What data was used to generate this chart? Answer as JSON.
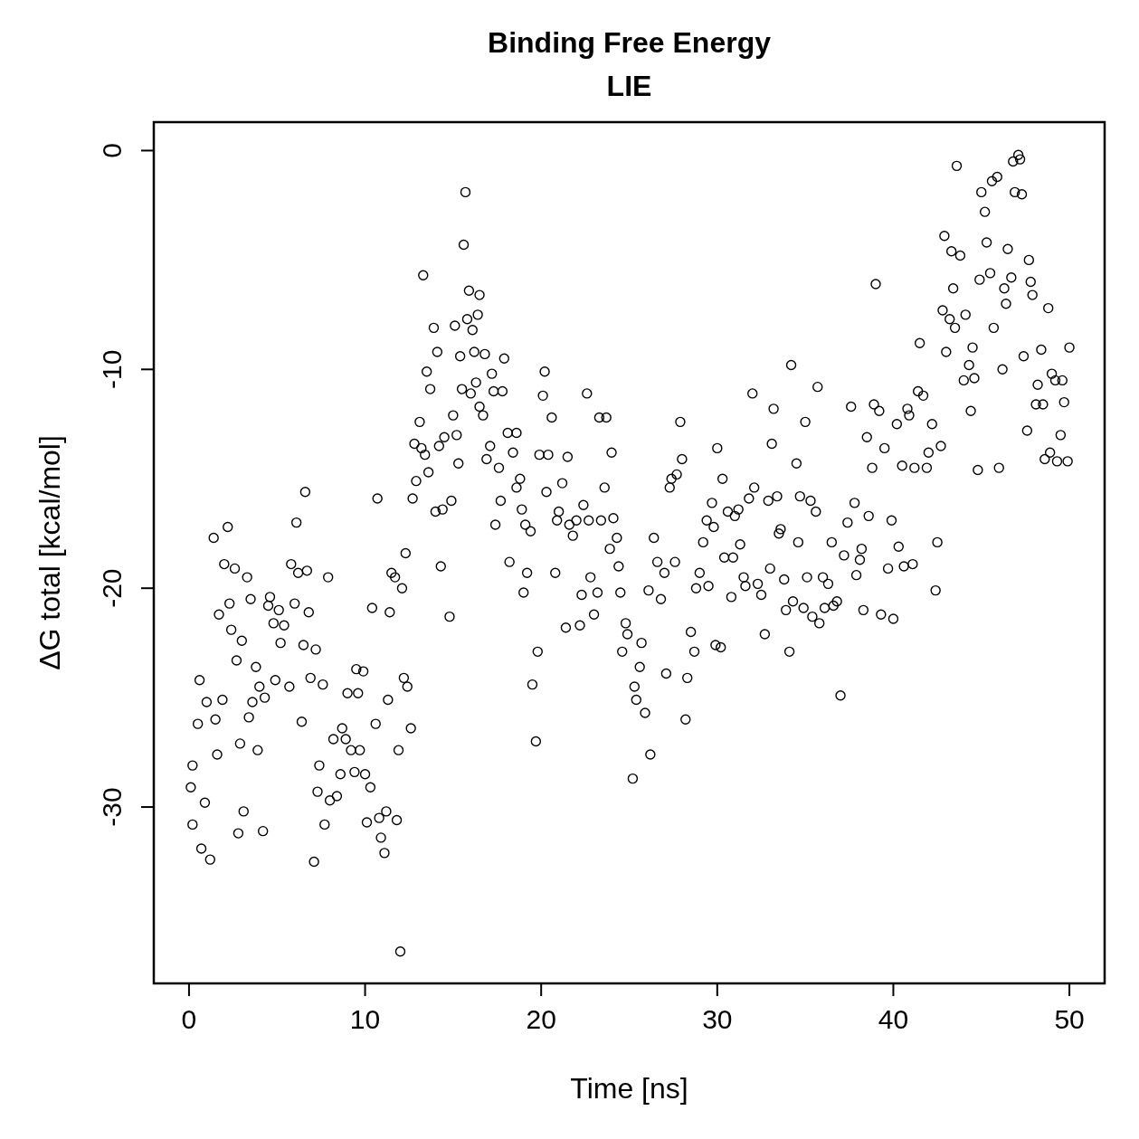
{
  "chart_data": {
    "type": "scatter",
    "title": "Binding Free Energy",
    "subtitle": "LIE",
    "xlabel": "Time [ns]",
    "ylabel": "ΔG total [kcal/mol]",
    "xlim": [
      -2,
      52
    ],
    "ylim": [
      -38.06,
      1.3
    ],
    "xticks": [
      0,
      10,
      20,
      30,
      40,
      50
    ],
    "yticks": [
      -30,
      -20,
      -10,
      0
    ],
    "grid": false,
    "marker": "circle",
    "series": [
      {
        "color": "#000000",
        "x": [
          0.1,
          0.2,
          0.2,
          0.5,
          0.6,
          0.7,
          0.9,
          1.0,
          1.2,
          1.4,
          1.5,
          1.6,
          1.7,
          1.9,
          2.0,
          2.2,
          2.3,
          2.4,
          2.6,
          2.7,
          2.9,
          3.0,
          2.8,
          3.1,
          3.3,
          3.4,
          3.5,
          3.6,
          3.8,
          3.9,
          4.0,
          4.2,
          4.3,
          4.5,
          4.6,
          4.8,
          4.9,
          5.1,
          5.2,
          5.4,
          5.7,
          5.8,
          6.0,
          6.1,
          6.2,
          6.4,
          6.5,
          6.6,
          6.7,
          6.8,
          6.9,
          7.1,
          7.2,
          7.3,
          7.4,
          7.6,
          7.7,
          7.9,
          8.0,
          8.2,
          8.4,
          8.6,
          8.7,
          8.9,
          9.0,
          9.2,
          9.4,
          9.5,
          9.6,
          9.7,
          9.9,
          10.0,
          10.1,
          10.3,
          10.4,
          10.6,
          10.7,
          10.8,
          10.9,
          11.1,
          11.2,
          11.3,
          11.4,
          11.5,
          11.7,
          11.8,
          11.9,
          12.0,
          12.1,
          12.2,
          12.3,
          12.4,
          12.6,
          12.7,
          12.8,
          12.9,
          13.1,
          13.2,
          13.3,
          13.4,
          13.5,
          13.6,
          13.7,
          13.9,
          14.0,
          14.1,
          14.2,
          14.3,
          14.4,
          14.5,
          14.8,
          14.9,
          15.0,
          15.1,
          15.2,
          15.3,
          15.4,
          15.5,
          15.6,
          15.7,
          15.8,
          15.9,
          16.0,
          16.1,
          16.2,
          16.3,
          16.4,
          16.5,
          16.5,
          16.7,
          16.8,
          16.9,
          17.1,
          17.2,
          17.3,
          17.4,
          17.6,
          17.7,
          17.8,
          17.9,
          18.1,
          18.2,
          18.4,
          18.6,
          18.6,
          18.8,
          18.9,
          19.0,
          19.1,
          19.2,
          19.4,
          19.5,
          19.7,
          19.8,
          19.9,
          20.1,
          20.2,
          20.3,
          20.4,
          20.6,
          20.8,
          20.9,
          21.0,
          21.2,
          21.4,
          21.5,
          21.6,
          21.8,
          22.0,
          22.2,
          22.3,
          22.4,
          22.6,
          22.7,
          22.8,
          23.0,
          23.2,
          23.3,
          23.4,
          23.6,
          23.7,
          23.9,
          24.0,
          24.1,
          24.3,
          24.4,
          24.5,
          24.6,
          24.8,
          24.9,
          25.2,
          25.3,
          25.4,
          25.6,
          25.7,
          25.9,
          26.1,
          26.2,
          26.4,
          26.6,
          26.8,
          27.0,
          27.1,
          27.3,
          27.4,
          27.6,
          27.7,
          27.9,
          28.0,
          28.2,
          28.3,
          28.5,
          28.7,
          28.8,
          29.0,
          29.2,
          29.4,
          29.5,
          29.7,
          29.8,
          29.9,
          30.0,
          30.2,
          30.3,
          30.4,
          30.6,
          30.8,
          30.9,
          31.0,
          31.2,
          31.3,
          31.5,
          31.6,
          31.8,
          32.0,
          32.1,
          32.3,
          32.5,
          32.7,
          32.9,
          33.0,
          33.1,
          33.2,
          33.4,
          33.5,
          33.6,
          33.8,
          33.9,
          34.1,
          34.2,
          34.3,
          34.5,
          34.6,
          34.7,
          34.9,
          35.0,
          35.1,
          35.3,
          35.4,
          35.6,
          35.7,
          35.8,
          36.0,
          36.1,
          36.3,
          36.5,
          36.6,
          36.8,
          37.0,
          37.2,
          37.4,
          37.6,
          37.8,
          37.9,
          38.1,
          38.2,
          38.3,
          38.5,
          38.6,
          38.8,
          38.9,
          39.0,
          39.2,
          39.3,
          39.5,
          39.7,
          39.9,
          40.0,
          40.2,
          40.3,
          40.5,
          40.6,
          40.8,
          40.9,
          41.1,
          41.2,
          41.4,
          41.5,
          41.7,
          41.9,
          42.0,
          42.2,
          42.4,
          42.5,
          42.7,
          42.8,
          42.9,
          43.0,
          43.2,
          43.3,
          43.4,
          43.5,
          43.6,
          43.8,
          44.0,
          44.1,
          44.3,
          44.4,
          44.5,
          44.6,
          44.8,
          44.9,
          45.0,
          45.2,
          45.3,
          45.5,
          45.6,
          45.7,
          45.9,
          46.0,
          46.2,
          46.3,
          46.4,
          46.5,
          46.7,
          46.8,
          46.9,
          47.1,
          47.2,
          47.3,
          47.4,
          47.6,
          47.7,
          47.8,
          47.9,
          48.1,
          48.2,
          48.4,
          48.5,
          48.6,
          48.8,
          48.9,
          49.0,
          49.2,
          49.3,
          49.5,
          49.6,
          49.7,
          49.9,
          50.0
        ],
        "values": [
          -29.1,
          -30.8,
          -28.1,
          -26.2,
          -24.2,
          -31.9,
          -29.8,
          -25.2,
          -32.4,
          -17.7,
          -26.0,
          -27.6,
          -21.2,
          -25.1,
          -18.9,
          -17.2,
          -20.7,
          -21.9,
          -19.1,
          -23.3,
          -27.1,
          -22.4,
          -31.2,
          -30.2,
          -19.5,
          -25.9,
          -20.5,
          -25.2,
          -23.6,
          -27.4,
          -24.5,
          -31.1,
          -25.0,
          -20.8,
          -20.4,
          -21.6,
          -24.2,
          -21.0,
          -22.5,
          -21.7,
          -24.5,
          -18.9,
          -20.7,
          -17.0,
          -19.3,
          -26.1,
          -22.6,
          -15.6,
          -19.2,
          -21.1,
          -24.1,
          -32.5,
          -22.8,
          -29.3,
          -28.1,
          -24.4,
          -30.8,
          -19.5,
          -29.7,
          -26.9,
          -29.5,
          -28.5,
          -26.4,
          -26.9,
          -24.8,
          -27.4,
          -28.4,
          -23.7,
          -24.8,
          -27.4,
          -23.8,
          -28.5,
          -30.7,
          -29.1,
          -20.9,
          -26.2,
          -15.9,
          -30.5,
          -31.4,
          -32.1,
          -30.2,
          -25.1,
          -21.1,
          -19.3,
          -19.5,
          -30.6,
          -27.4,
          -36.6,
          -20.0,
          -24.1,
          -18.4,
          -24.5,
          -26.4,
          -15.9,
          -13.4,
          -15.1,
          -12.4,
          -13.6,
          -5.7,
          -13.9,
          -10.1,
          -14.7,
          -10.9,
          -8.1,
          -16.5,
          -9.2,
          -13.5,
          -19.0,
          -16.4,
          -13.1,
          -21.3,
          -16.0,
          -12.1,
          -8.0,
          -13.0,
          -14.3,
          -9.4,
          -10.9,
          -4.3,
          -1.9,
          -7.7,
          -6.4,
          -11.1,
          -8.2,
          -9.2,
          -10.6,
          -7.5,
          -6.6,
          -11.7,
          -12.1,
          -9.3,
          -14.1,
          -13.5,
          -10.2,
          -11.0,
          -17.1,
          -14.5,
          -16.0,
          -11.0,
          -9.5,
          -12.9,
          -18.8,
          -13.8,
          -15.4,
          -12.9,
          -15.0,
          -16.4,
          -20.2,
          -17.1,
          -19.3,
          -17.4,
          -24.4,
          -27.0,
          -22.9,
          -13.9,
          -11.2,
          -10.1,
          -15.6,
          -13.9,
          -12.2,
          -19.3,
          -16.9,
          -16.5,
          -15.2,
          -21.8,
          -14.0,
          -17.1,
          -17.6,
          -16.9,
          -21.7,
          -20.3,
          -16.2,
          -11.1,
          -16.9,
          -19.5,
          -21.2,
          -20.2,
          -12.2,
          -16.9,
          -15.4,
          -12.2,
          -18.2,
          -13.8,
          -16.8,
          -17.7,
          -19.0,
          -20.2,
          -22.9,
          -21.6,
          -22.1,
          -28.7,
          -24.5,
          -25.1,
          -23.6,
          -22.5,
          -25.7,
          -20.1,
          -27.6,
          -17.7,
          -18.8,
          -20.5,
          -19.3,
          -23.9,
          -15.4,
          -15.0,
          -18.8,
          -14.8,
          -12.4,
          -14.1,
          -26.0,
          -24.1,
          -22.0,
          -22.9,
          -20.0,
          -19.3,
          -17.9,
          -16.9,
          -19.9,
          -16.1,
          -17.2,
          -22.6,
          -13.6,
          -22.7,
          -15.0,
          -18.6,
          -16.5,
          -20.4,
          -18.6,
          -16.7,
          -16.4,
          -18.0,
          -19.5,
          -19.9,
          -15.9,
          -11.1,
          -15.4,
          -19.8,
          -20.3,
          -22.1,
          -16.0,
          -19.1,
          -13.4,
          -11.8,
          -15.8,
          -17.5,
          -17.3,
          -19.6,
          -21.0,
          -22.9,
          -9.8,
          -20.6,
          -14.3,
          -17.9,
          -15.8,
          -20.9,
          -12.4,
          -19.5,
          -16.0,
          -21.3,
          -16.5,
          -10.8,
          -21.6,
          -19.5,
          -20.9,
          -19.8,
          -17.9,
          -20.8,
          -20.6,
          -24.9,
          -18.5,
          -17.0,
          -11.7,
          -16.1,
          -19.4,
          -18.7,
          -18.2,
          -21.0,
          -13.1,
          -16.7,
          -14.5,
          -11.6,
          -6.1,
          -11.9,
          -21.2,
          -13.6,
          -19.1,
          -16.9,
          -21.4,
          -12.5,
          -18.1,
          -14.4,
          -19.0,
          -11.8,
          -12.1,
          -18.9,
          -14.5,
          -11.0,
          -8.8,
          -11.2,
          -14.5,
          -13.8,
          -12.5,
          -20.1,
          -17.9,
          -13.5,
          -7.3,
          -3.9,
          -9.2,
          -7.7,
          -4.6,
          -6.3,
          -8.1,
          -0.7,
          -4.8,
          -10.5,
          -7.5,
          -9.8,
          -11.9,
          -9.0,
          -10.4,
          -14.6,
          -5.9,
          -1.9,
          -2.8,
          -4.2,
          -5.6,
          -1.4,
          -8.1,
          -1.2,
          -14.5,
          -10.0,
          -6.3,
          -7.0,
          -4.5,
          -5.8,
          -0.5,
          -1.9,
          -0.2,
          -0.4,
          -2.0,
          -9.4,
          -12.8,
          -5.0,
          -6.0,
          -6.6,
          -11.6,
          -10.7,
          -9.1,
          -11.6,
          -14.1,
          -7.2,
          -13.8,
          -10.2,
          -10.5,
          -14.2,
          -13.0,
          -10.5,
          -11.5,
          -14.2,
          -9.0
        ]
      }
    ]
  }
}
